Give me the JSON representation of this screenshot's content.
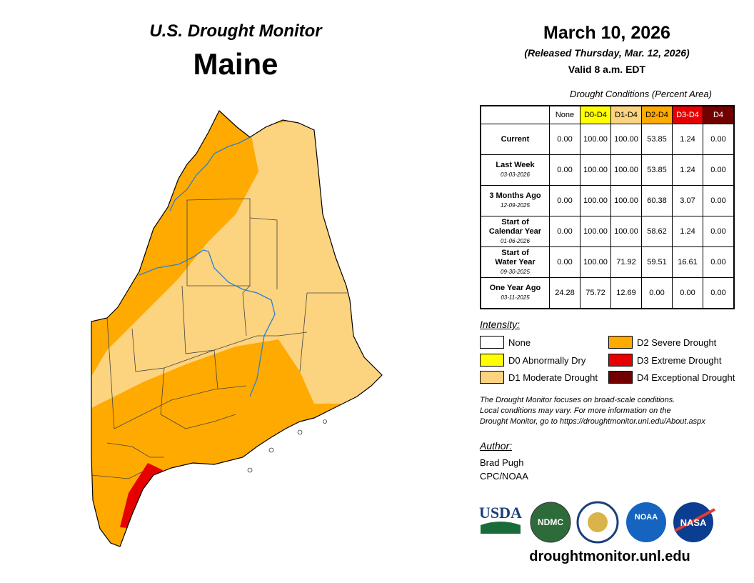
{
  "header": {
    "title": "U.S. Drought Monitor",
    "state": "Maine"
  },
  "date": {
    "map_date": "March 10, 2026",
    "released": "(Released Thursday, Mar. 12, 2026)",
    "valid": "Valid 8 a.m. EDT"
  },
  "table": {
    "caption": "Drought Conditions (Percent Area)",
    "columns": [
      {
        "label": "None",
        "color": "#ffffff"
      },
      {
        "label": "D0-D4",
        "color": "#ffff00"
      },
      {
        "label": "D1-D4",
        "color": "#fcd37f"
      },
      {
        "label": "D2-D4",
        "color": "#ffaa00"
      },
      {
        "label": "D3-D4",
        "color": "#e60000"
      },
      {
        "label": "D4",
        "color": "#730000"
      }
    ],
    "rows": [
      {
        "label": [
          "Current"
        ],
        "values": [
          "0.00",
          "100.00",
          "100.00",
          "53.85",
          "1.24",
          "0.00"
        ]
      },
      {
        "label": [
          "Last Week"
        ],
        "date": "03-03-2026",
        "values": [
          "0.00",
          "100.00",
          "100.00",
          "53.85",
          "1.24",
          "0.00"
        ]
      },
      {
        "label": [
          "3 Months Ago"
        ],
        "date": "12-09-2025",
        "values": [
          "0.00",
          "100.00",
          "100.00",
          "60.38",
          "3.07",
          "0.00"
        ]
      },
      {
        "label": [
          "Start of",
          "Calendar Year"
        ],
        "date": "01-06-2026",
        "values": [
          "0.00",
          "100.00",
          "100.00",
          "58.62",
          "1.24",
          "0.00"
        ]
      },
      {
        "label": [
          "Start of",
          "Water Year"
        ],
        "date": "09-30-2025",
        "values": [
          "0.00",
          "100.00",
          "71.92",
          "59.51",
          "16.61",
          "0.00"
        ]
      },
      {
        "label": [
          "One Year Ago"
        ],
        "date": "03-11-2025",
        "values": [
          "24.28",
          "75.72",
          "12.69",
          "0.00",
          "0.00",
          "0.00"
        ]
      }
    ]
  },
  "legend": {
    "title": "Intensity:",
    "items": [
      {
        "label": "None",
        "color": "#ffffff"
      },
      {
        "label": "D0 Abnormally Dry",
        "color": "#ffff00"
      },
      {
        "label": "D1 Moderate Drought",
        "color": "#fcd37f"
      },
      {
        "label": "D2 Severe Drought",
        "color": "#ffaa00"
      },
      {
        "label": "D3 Extreme Drought",
        "color": "#e60000"
      },
      {
        "label": "D4 Exceptional Drought",
        "color": "#730000"
      }
    ]
  },
  "note": [
    "The Drought Monitor focuses on broad-scale conditions.",
    "Local conditions may vary. For more information on the",
    "Drought Monitor, go to https://droughtmonitor.unl.edu/About.aspx"
  ],
  "author": {
    "title": "Author:",
    "lines": [
      "Brad Pugh",
      "CPC/NOAA"
    ]
  },
  "logos": [
    "USDA",
    "NDMC",
    "NOAA",
    "NASA"
  ],
  "url": "droughtmonitor.unl.edu"
}
